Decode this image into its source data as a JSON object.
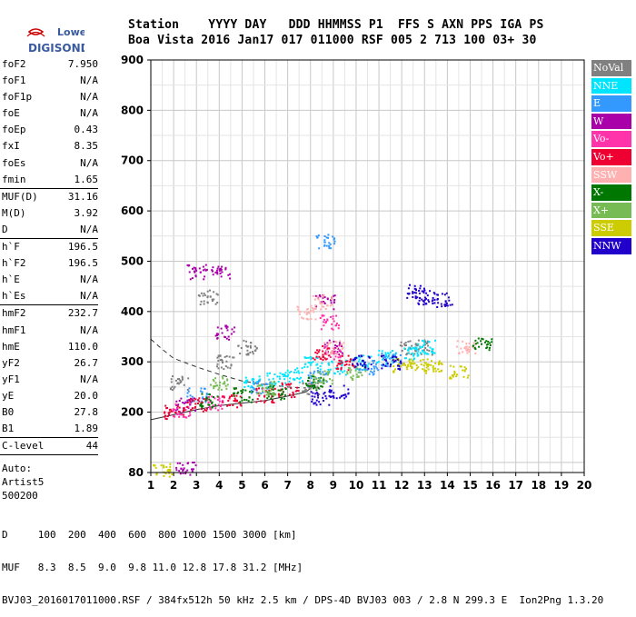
{
  "logo": {
    "line1": "Lowell",
    "line2": "DIGISONDE"
  },
  "header": {
    "line1": "Station    YYYY DAY   DDD HHMMSS P1  FFS S AXN PPS IGA PS",
    "line2": "Boa Vista 2016 Jan17 017 011000 RSF 005 2 713 100 03+ 30"
  },
  "params": {
    "group1": [
      {
        "name": "foF2",
        "value": "7.950"
      },
      {
        "name": "foF1",
        "value": "N/A"
      },
      {
        "name": "foF1p",
        "value": "N/A"
      },
      {
        "name": "foE",
        "value": "N/A"
      },
      {
        "name": "foEp",
        "value": "0.43"
      },
      {
        "name": "fxI",
        "value": "8.35"
      },
      {
        "name": "foEs",
        "value": "N/A"
      },
      {
        "name": "fmin",
        "value": "1.65"
      }
    ],
    "group2": [
      {
        "name": "MUF(D)",
        "value": "31.16"
      },
      {
        "name": "M(D)",
        "value": "3.92"
      },
      {
        "name": "D",
        "value": "N/A"
      }
    ],
    "group3": [
      {
        "name": "h`F",
        "value": "196.5"
      },
      {
        "name": "h`F2",
        "value": "196.5"
      },
      {
        "name": "h`E",
        "value": "N/A"
      },
      {
        "name": "h`Es",
        "value": "N/A"
      }
    ],
    "group4": [
      {
        "name": "hmF2",
        "value": "232.7"
      },
      {
        "name": "hmF1",
        "value": "N/A"
      },
      {
        "name": "hmE",
        "value": "110.0"
      },
      {
        "name": "yF2",
        "value": "26.7"
      },
      {
        "name": "yF1",
        "value": "N/A"
      },
      {
        "name": "yE",
        "value": "20.0"
      },
      {
        "name": "B0",
        "value": "27.8"
      },
      {
        "name": "B1",
        "value": "1.89"
      }
    ],
    "group5": [
      {
        "name": "C-level",
        "value": "44"
      }
    ],
    "auto": [
      "Auto:",
      "Artist5",
      "500200"
    ]
  },
  "legend": [
    {
      "label": "NoVal",
      "bg": "#808080",
      "fg": "#ffffff"
    },
    {
      "label": "NNE",
      "bg": "#00e5ff",
      "fg": "#ffffff"
    },
    {
      "label": "E",
      "bg": "#3399ff",
      "fg": "#ffffff"
    },
    {
      "label": "W",
      "bg": "#aa00aa",
      "fg": "#ffffff"
    },
    {
      "label": "Vo-",
      "bg": "#ff33aa",
      "fg": "#ffffff"
    },
    {
      "label": "Vo+",
      "bg": "#ee0033",
      "fg": "#ffffff"
    },
    {
      "label": "SSW",
      "bg": "#ffb0b0",
      "fg": "#ffffff"
    },
    {
      "label": "X-",
      "bg": "#007700",
      "fg": "#ffffff"
    },
    {
      "label": "X+",
      "bg": "#77bb55",
      "fg": "#ffffff"
    },
    {
      "label": "SSE",
      "bg": "#cccc00",
      "fg": "#ffffff"
    },
    {
      "label": "NNW",
      "bg": "#2200cc",
      "fg": "#ffffff"
    }
  ],
  "footer": {
    "line1": "D     100  200  400  600  800 1000 1500 3000 [km]",
    "line2": "MUF   8.3  8.5  9.0  9.8 11.0 12.8 17.8 31.2 [MHz]",
    "line3": "BVJ03_2016017011000.RSF / 384fx512h 50 kHz 2.5 km / DPS-4D BVJ03 003 / 2.8 N 299.3 E  Ion2Png 1.3.20"
  },
  "chart_data": {
    "type": "scatter",
    "x": {
      "range": [
        1,
        20
      ],
      "ticks": [
        1,
        2,
        3,
        4,
        5,
        6,
        7,
        8,
        9,
        10,
        11,
        12,
        13,
        14,
        15,
        16,
        17,
        18,
        19,
        20
      ]
    },
    "y": {
      "range": [
        80,
        900
      ],
      "ticks": [
        80,
        200,
        300,
        400,
        500,
        600,
        700,
        800,
        900
      ]
    },
    "grid": true,
    "legend_position": "right",
    "series": [
      {
        "name": "NoVal",
        "color": "#808080",
        "points": [
          [
            2.2,
            260
          ],
          [
            3.5,
            430
          ],
          [
            4.3,
            300
          ],
          [
            5.2,
            330
          ],
          [
            8.0,
            250
          ],
          [
            12.3,
            330
          ],
          [
            13.0,
            330
          ]
        ]
      },
      {
        "name": "NNE",
        "color": "#00e5ff",
        "points": [
          [
            5.5,
            260
          ],
          [
            6.5,
            265
          ],
          [
            7.2,
            275
          ],
          [
            8.1,
            300
          ],
          [
            9.1,
            290
          ],
          [
            10.2,
            300
          ],
          [
            11.3,
            310
          ],
          [
            12.5,
            320
          ],
          [
            13.0,
            330
          ]
        ]
      },
      {
        "name": "E",
        "color": "#3399ff",
        "points": [
          [
            3.0,
            235
          ],
          [
            5.8,
            250
          ],
          [
            8.3,
            270
          ],
          [
            8.6,
            540
          ],
          [
            10.5,
            290
          ],
          [
            11.5,
            305
          ]
        ]
      },
      {
        "name": "W",
        "color": "#aa00aa",
        "points": [
          [
            2.5,
            215
          ],
          [
            3.0,
            480
          ],
          [
            4.0,
            480
          ],
          [
            4.2,
            360
          ],
          [
            8.6,
            420
          ],
          [
            9.0,
            330
          ],
          [
            2.5,
            88
          ]
        ]
      },
      {
        "name": "Vo-",
        "color": "#ff33aa",
        "points": [
          [
            2.3,
            205
          ],
          [
            3.8,
            220
          ],
          [
            8.8,
            380
          ],
          [
            9.0,
            320
          ]
        ]
      },
      {
        "name": "Vo+",
        "color": "#ee0033",
        "points": [
          [
            2.0,
            200
          ],
          [
            3.0,
            215
          ],
          [
            4.5,
            225
          ],
          [
            6.0,
            235
          ],
          [
            7.0,
            245
          ],
          [
            8.5,
            320
          ],
          [
            9.5,
            300
          ]
        ]
      },
      {
        "name": "SSW",
        "color": "#ffb0b0",
        "points": [
          [
            7.8,
            400
          ],
          [
            8.5,
            420
          ],
          [
            9.0,
            330
          ],
          [
            14.8,
            330
          ]
        ]
      },
      {
        "name": "X-",
        "color": "#007700",
        "points": [
          [
            3.5,
            225
          ],
          [
            5.0,
            235
          ],
          [
            6.5,
            240
          ],
          [
            8.2,
            260
          ],
          [
            15.5,
            335
          ]
        ]
      },
      {
        "name": "X+",
        "color": "#77bb55",
        "points": [
          [
            4.0,
            260
          ],
          [
            6.0,
            250
          ],
          [
            8.5,
            270
          ],
          [
            10.0,
            280
          ]
        ]
      },
      {
        "name": "SSE",
        "color": "#cccc00",
        "points": [
          [
            12.0,
            295
          ],
          [
            12.7,
            293
          ],
          [
            13.3,
            292
          ],
          [
            14.5,
            280
          ],
          [
            1.5,
            87
          ]
        ]
      },
      {
        "name": "NNW",
        "color": "#2200cc",
        "points": [
          [
            8.4,
            230
          ],
          [
            9.2,
            240
          ],
          [
            12.6,
            440
          ],
          [
            13.0,
            430
          ],
          [
            13.8,
            425
          ],
          [
            10.2,
            300
          ],
          [
            11.5,
            300
          ]
        ]
      }
    ],
    "curve": {
      "name": "",
      "points": [
        [
          1.0,
          185
        ],
        [
          2.0,
          195
        ],
        [
          3.0,
          205
        ],
        [
          4.0,
          213
        ],
        [
          5.0,
          218
        ],
        [
          6.0,
          223
        ],
        [
          7.0,
          232
        ],
        [
          7.8,
          240
        ],
        [
          8.2,
          255
        ]
      ]
    },
    "dashed_curve": {
      "name": "",
      "points": [
        [
          1.0,
          345
        ],
        [
          1.5,
          325
        ],
        [
          2.0,
          307
        ],
        [
          3.0,
          290
        ],
        [
          4.0,
          275
        ],
        [
          5.0,
          262
        ],
        [
          6.0,
          255
        ],
        [
          7.0,
          250
        ],
        [
          7.8,
          248
        ]
      ]
    }
  }
}
